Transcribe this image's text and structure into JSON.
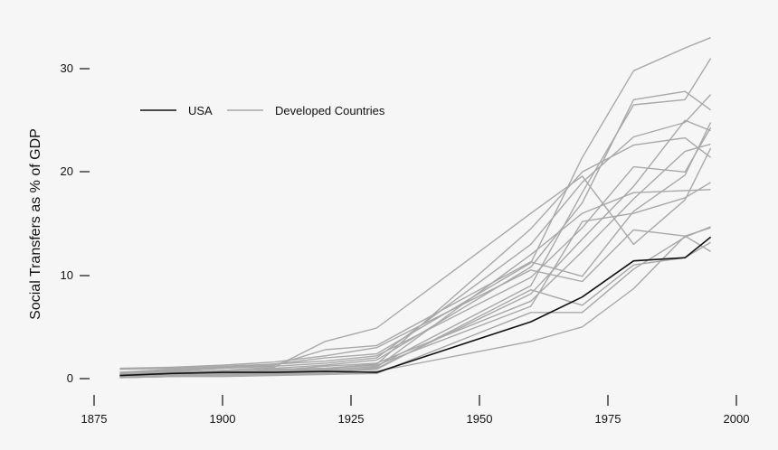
{
  "chart_data": {
    "type": "line",
    "title": "",
    "xlabel": "",
    "ylabel": "Social Transfers as % of GDP",
    "xlim": [
      1875,
      2000
    ],
    "ylim": [
      0,
      30
    ],
    "x_ticks": [
      1875,
      1900,
      1925,
      1950,
      1975,
      2000
    ],
    "y_ticks": [
      0,
      10,
      20,
      30
    ],
    "x_tick_labels": [
      "1875",
      "1900",
      "1925",
      "1950",
      "1975",
      "2000"
    ],
    "y_tick_labels": [
      "0",
      "10",
      "20",
      "30"
    ],
    "grid": false,
    "legend": {
      "placement": "top-left",
      "entries": [
        {
          "label": "USA",
          "color": "#111111"
        },
        {
          "label": "Developed Countries",
          "color": "#a8a8a8"
        }
      ]
    },
    "x": [
      1880,
      1890,
      1900,
      1910,
      1920,
      1930,
      1960,
      1970,
      1980,
      1990,
      1995
    ],
    "series": [
      {
        "name": "USA",
        "color": "#111111",
        "values": [
          0.3,
          0.5,
          0.6,
          0.6,
          0.7,
          0.6,
          5.5,
          7.9,
          11.4,
          11.7,
          13.7
        ]
      },
      {
        "name": "Developed Countries",
        "color": "#a8a8a8",
        "values": [
          0.6,
          0.9,
          1.1,
          1.4,
          2.0,
          2.4,
          11.2,
          21.4,
          29.8,
          32.0,
          33.0
        ]
      },
      {
        "name": "Developed Countries",
        "color": "#a8a8a8",
        "values": [
          0.4,
          0.6,
          0.8,
          1.0,
          1.3,
          1.8,
          10.8,
          17.0,
          27.0,
          27.8,
          26.0
        ]
      },
      {
        "name": "Developed Countries",
        "color": "#a8a8a8",
        "values": [
          0.2,
          0.3,
          0.4,
          0.6,
          0.8,
          1.2,
          9.0,
          18.0,
          26.5,
          27.0,
          31.0
        ]
      },
      {
        "name": "Developed Countries",
        "color": "#a8a8a8",
        "values": [
          0.5,
          0.7,
          1.0,
          1.2,
          1.5,
          2.0,
          13.0,
          19.0,
          23.4,
          24.8,
          27.5
        ]
      },
      {
        "name": "Developed Countries",
        "color": "#a8a8a8",
        "values": [
          0.3,
          0.4,
          0.6,
          0.9,
          1.0,
          1.4,
          14.5,
          20.0,
          22.6,
          23.3,
          21.4
        ]
      },
      {
        "name": "Developed Countries",
        "color": "#a8a8a8",
        "values": [
          0.9,
          1.0,
          1.2,
          1.4,
          1.7,
          2.2,
          9.8,
          14.6,
          20.5,
          20.0,
          24.3
        ]
      },
      {
        "name": "Developed Countries",
        "color": "#a8a8a8",
        "values": [
          0.1,
          0.2,
          0.3,
          0.5,
          0.7,
          1.0,
          8.2,
          13.5,
          18.6,
          25.0,
          24.0
        ]
      },
      {
        "name": "Developed Countries",
        "color": "#a8a8a8",
        "values": [
          0.4,
          0.5,
          0.7,
          0.8,
          1.2,
          1.5,
          7.5,
          12.3,
          17.4,
          22.0,
          22.7
        ]
      },
      {
        "name": "Developed Countries",
        "color": "#a8a8a8",
        "values": [
          0.2,
          0.3,
          0.5,
          0.7,
          0.9,
          1.1,
          12.0,
          16.0,
          18.0,
          18.2,
          18.3
        ]
      },
      {
        "name": "Developed Countries",
        "color": "#a8a8a8",
        "values": [
          0.6,
          0.8,
          1.0,
          1.3,
          2.8,
          3.2,
          11.3,
          9.9,
          16.2,
          19.7,
          24.8
        ]
      },
      {
        "name": "Developed Countries",
        "color": "#a8a8a8",
        "values": [
          0.3,
          0.5,
          0.6,
          0.8,
          1.0,
          1.3,
          7.0,
          15.2,
          16.0,
          17.5,
          19.0
        ]
      },
      {
        "name": "Developed Countries",
        "color": "#a8a8a8",
        "values": [
          1.0,
          1.1,
          1.3,
          1.6,
          2.2,
          3.0,
          10.5,
          9.4,
          14.4,
          13.8,
          14.6
        ]
      },
      {
        "name": "Developed Countries",
        "color": "#a8a8a8",
        "values": [
          0.5,
          0.6,
          0.8,
          1.1,
          3.6,
          4.9,
          16.0,
          19.6,
          13.0,
          17.3,
          22.3
        ]
      },
      {
        "name": "Developed Countries",
        "color": "#a8a8a8",
        "values": [
          0.1,
          0.2,
          0.2,
          0.3,
          0.4,
          0.5,
          6.4,
          6.4,
          10.6,
          13.7,
          14.7
        ]
      },
      {
        "name": "Developed Countries",
        "color": "#a8a8a8",
        "values": [
          0.2,
          0.3,
          0.4,
          0.5,
          0.6,
          0.9,
          8.6,
          7.1,
          11.0,
          11.7,
          13.2
        ]
      },
      {
        "name": "Developed Countries",
        "color": "#a8a8a8",
        "values": [
          0.1,
          0.2,
          0.3,
          0.4,
          0.5,
          0.7,
          3.6,
          5.0,
          8.7,
          13.8,
          12.3
        ]
      }
    ]
  }
}
